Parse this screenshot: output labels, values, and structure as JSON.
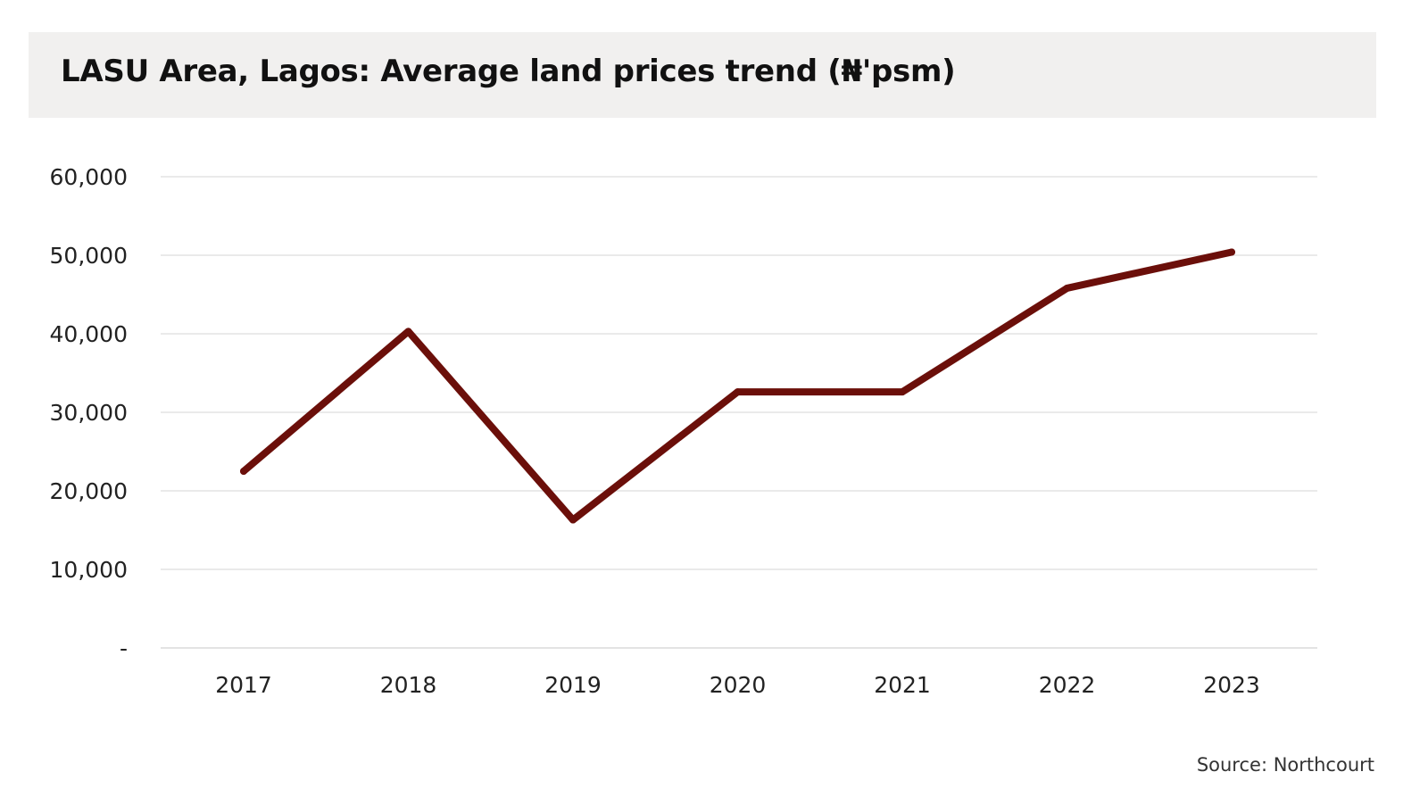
{
  "colors": {
    "series_line": "#6b0f0a",
    "gridline": "#e3e3e3",
    "title_background": "#f1f0ef"
  },
  "chart_data": {
    "type": "line",
    "title": "LASU Area, Lagos: Average land prices trend (₦'psm)",
    "xlabel": "",
    "ylabel": "",
    "categories": [
      "2017",
      "2018",
      "2019",
      "2020",
      "2021",
      "2022",
      "2023"
    ],
    "series": [
      {
        "values": [
          22500,
          40300,
          16300,
          32600,
          32600,
          45800,
          50400
        ]
      }
    ],
    "ylim": [
      0,
      60000
    ],
    "yticks": [
      {
        "value": 0,
        "label": "-"
      },
      {
        "value": 10000,
        "label": "10,000"
      },
      {
        "value": 20000,
        "label": "20,000"
      },
      {
        "value": 30000,
        "label": "30,000"
      },
      {
        "value": 40000,
        "label": "40,000"
      },
      {
        "value": 50000,
        "label": "50,000"
      },
      {
        "value": 60000,
        "label": "60,000"
      }
    ],
    "grid": true,
    "legend": "none",
    "source": "Source: Northcourt"
  }
}
